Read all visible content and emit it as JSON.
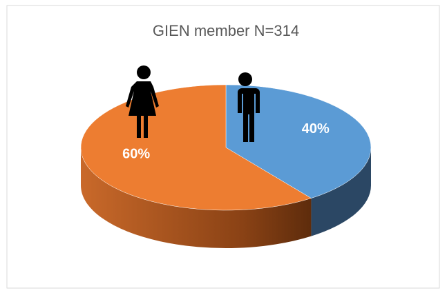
{
  "chart_data": {
    "type": "pie",
    "title": "GIEN member N=314",
    "values": [
      40,
      60
    ],
    "value_labels": [
      "40%",
      "60%"
    ],
    "colors": [
      "#5b9bd5",
      "#ed7d31"
    ],
    "side_colors": [
      "#2b4764",
      "#a0501c"
    ]
  }
}
